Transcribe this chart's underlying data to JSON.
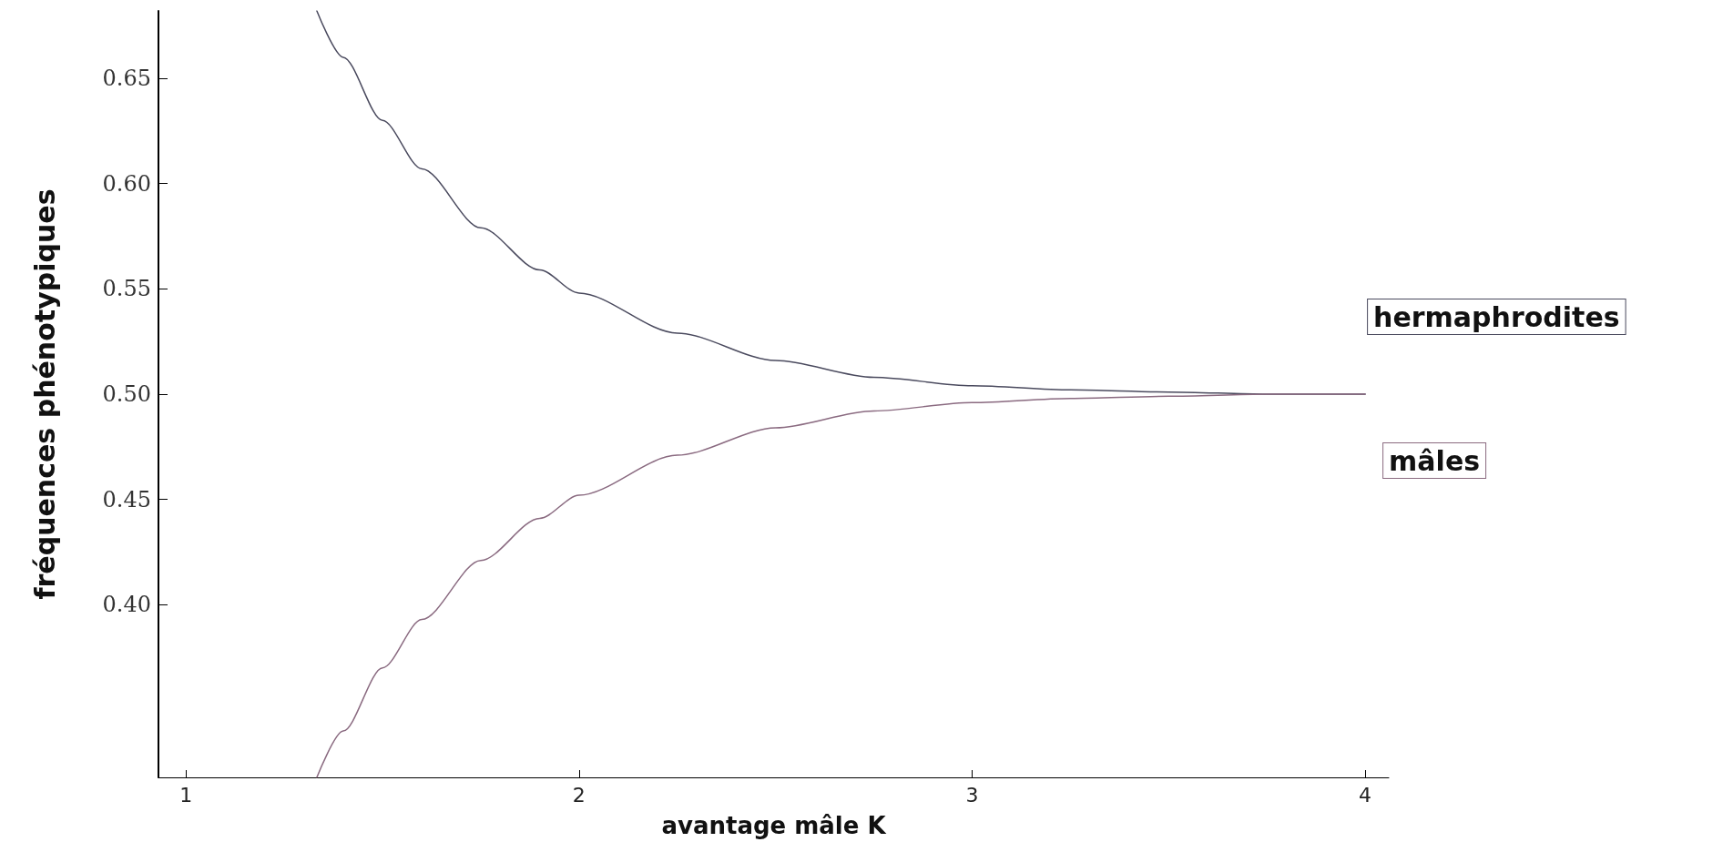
{
  "chart_data": {
    "type": "line",
    "xlabel": "avantage mâle K",
    "ylabel": "fréquences phénotypiques",
    "x": [
      1.333,
      1.4,
      1.5,
      1.6,
      1.75,
      1.9,
      2,
      2.25,
      2.5,
      2.75,
      3,
      3.25,
      3.5,
      3.75,
      4
    ],
    "series": [
      {
        "name": "hermaphrodites",
        "color": "#4a4a5e",
        "values": [
          0.682,
          0.66,
          0.63,
          0.607,
          0.579,
          0.559,
          0.548,
          0.529,
          0.516,
          0.508,
          0.504,
          0.502,
          0.501,
          0.5,
          0.5
        ]
      },
      {
        "name": "mâles",
        "color": "#8a6a80",
        "values": [
          0.318,
          0.34,
          0.37,
          0.393,
          0.421,
          0.441,
          0.452,
          0.471,
          0.484,
          0.492,
          0.496,
          0.498,
          0.499,
          0.5,
          0.5
        ]
      }
    ],
    "xlim": [
      0.93,
      4.06
    ],
    "xticks": [
      1,
      2,
      3,
      4
    ],
    "ylim": [
      0.318,
      0.682
    ],
    "yticks": [
      {
        "value": 0.4,
        "label": "0.40"
      },
      {
        "value": 0.45,
        "label": "0.45"
      },
      {
        "value": 0.5,
        "label": "0.50"
      },
      {
        "value": 0.55,
        "label": "0.55"
      },
      {
        "value": 0.6,
        "label": "0.60"
      },
      {
        "value": 0.65,
        "label": "0.65"
      }
    ],
    "grid": false,
    "legend": false,
    "marker": "none",
    "line_style": "solid"
  }
}
